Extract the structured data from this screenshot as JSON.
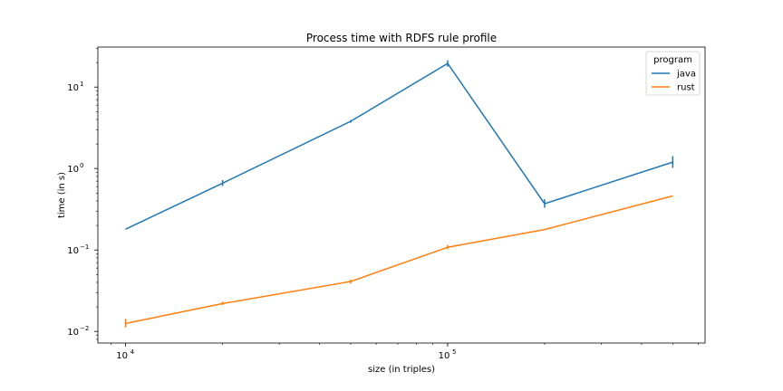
{
  "chart_data": {
    "type": "line",
    "title": "Process time with RDFS rule profile",
    "xlabel": "size (in triples)",
    "ylabel": "time (in s)",
    "xscale": "log",
    "yscale": "log",
    "xlim": [
      8200,
      630000
    ],
    "ylim": [
      0.0072,
      31
    ],
    "grid": false,
    "legend": {
      "title": "program",
      "placement": "top-right"
    },
    "x_ticks": [
      {
        "value": 10000,
        "base": "10",
        "exp": "4"
      },
      {
        "value": 100000,
        "base": "10",
        "exp": "5"
      }
    ],
    "y_ticks": [
      {
        "value": 0.01,
        "base": "10",
        "exp": "−2"
      },
      {
        "value": 0.1,
        "base": "10",
        "exp": "−1"
      },
      {
        "value": 1,
        "base": "10",
        "exp": "0"
      },
      {
        "value": 10,
        "base": "10",
        "exp": "1"
      }
    ],
    "series": [
      {
        "name": "java",
        "color": "#1f77b4",
        "x": [
          10000,
          20000,
          50000,
          100000,
          200000,
          500000
        ],
        "y": [
          0.18,
          0.66,
          3.8,
          19.5,
          0.37,
          1.2
        ],
        "err_low": [
          0.18,
          0.61,
          3.65,
          17.8,
          0.33,
          1.02
        ],
        "err_high": [
          0.18,
          0.72,
          3.95,
          21.3,
          0.42,
          1.42
        ]
      },
      {
        "name": "rust",
        "color": "#ff7f0e",
        "x": [
          10000,
          20000,
          50000,
          100000,
          200000,
          500000
        ],
        "y": [
          0.0125,
          0.022,
          0.041,
          0.108,
          0.178,
          0.46
        ],
        "err_low": [
          0.0112,
          0.0211,
          0.0385,
          0.102,
          0.178,
          0.46
        ],
        "err_high": [
          0.0143,
          0.0232,
          0.0435,
          0.115,
          0.178,
          0.46
        ]
      }
    ]
  }
}
